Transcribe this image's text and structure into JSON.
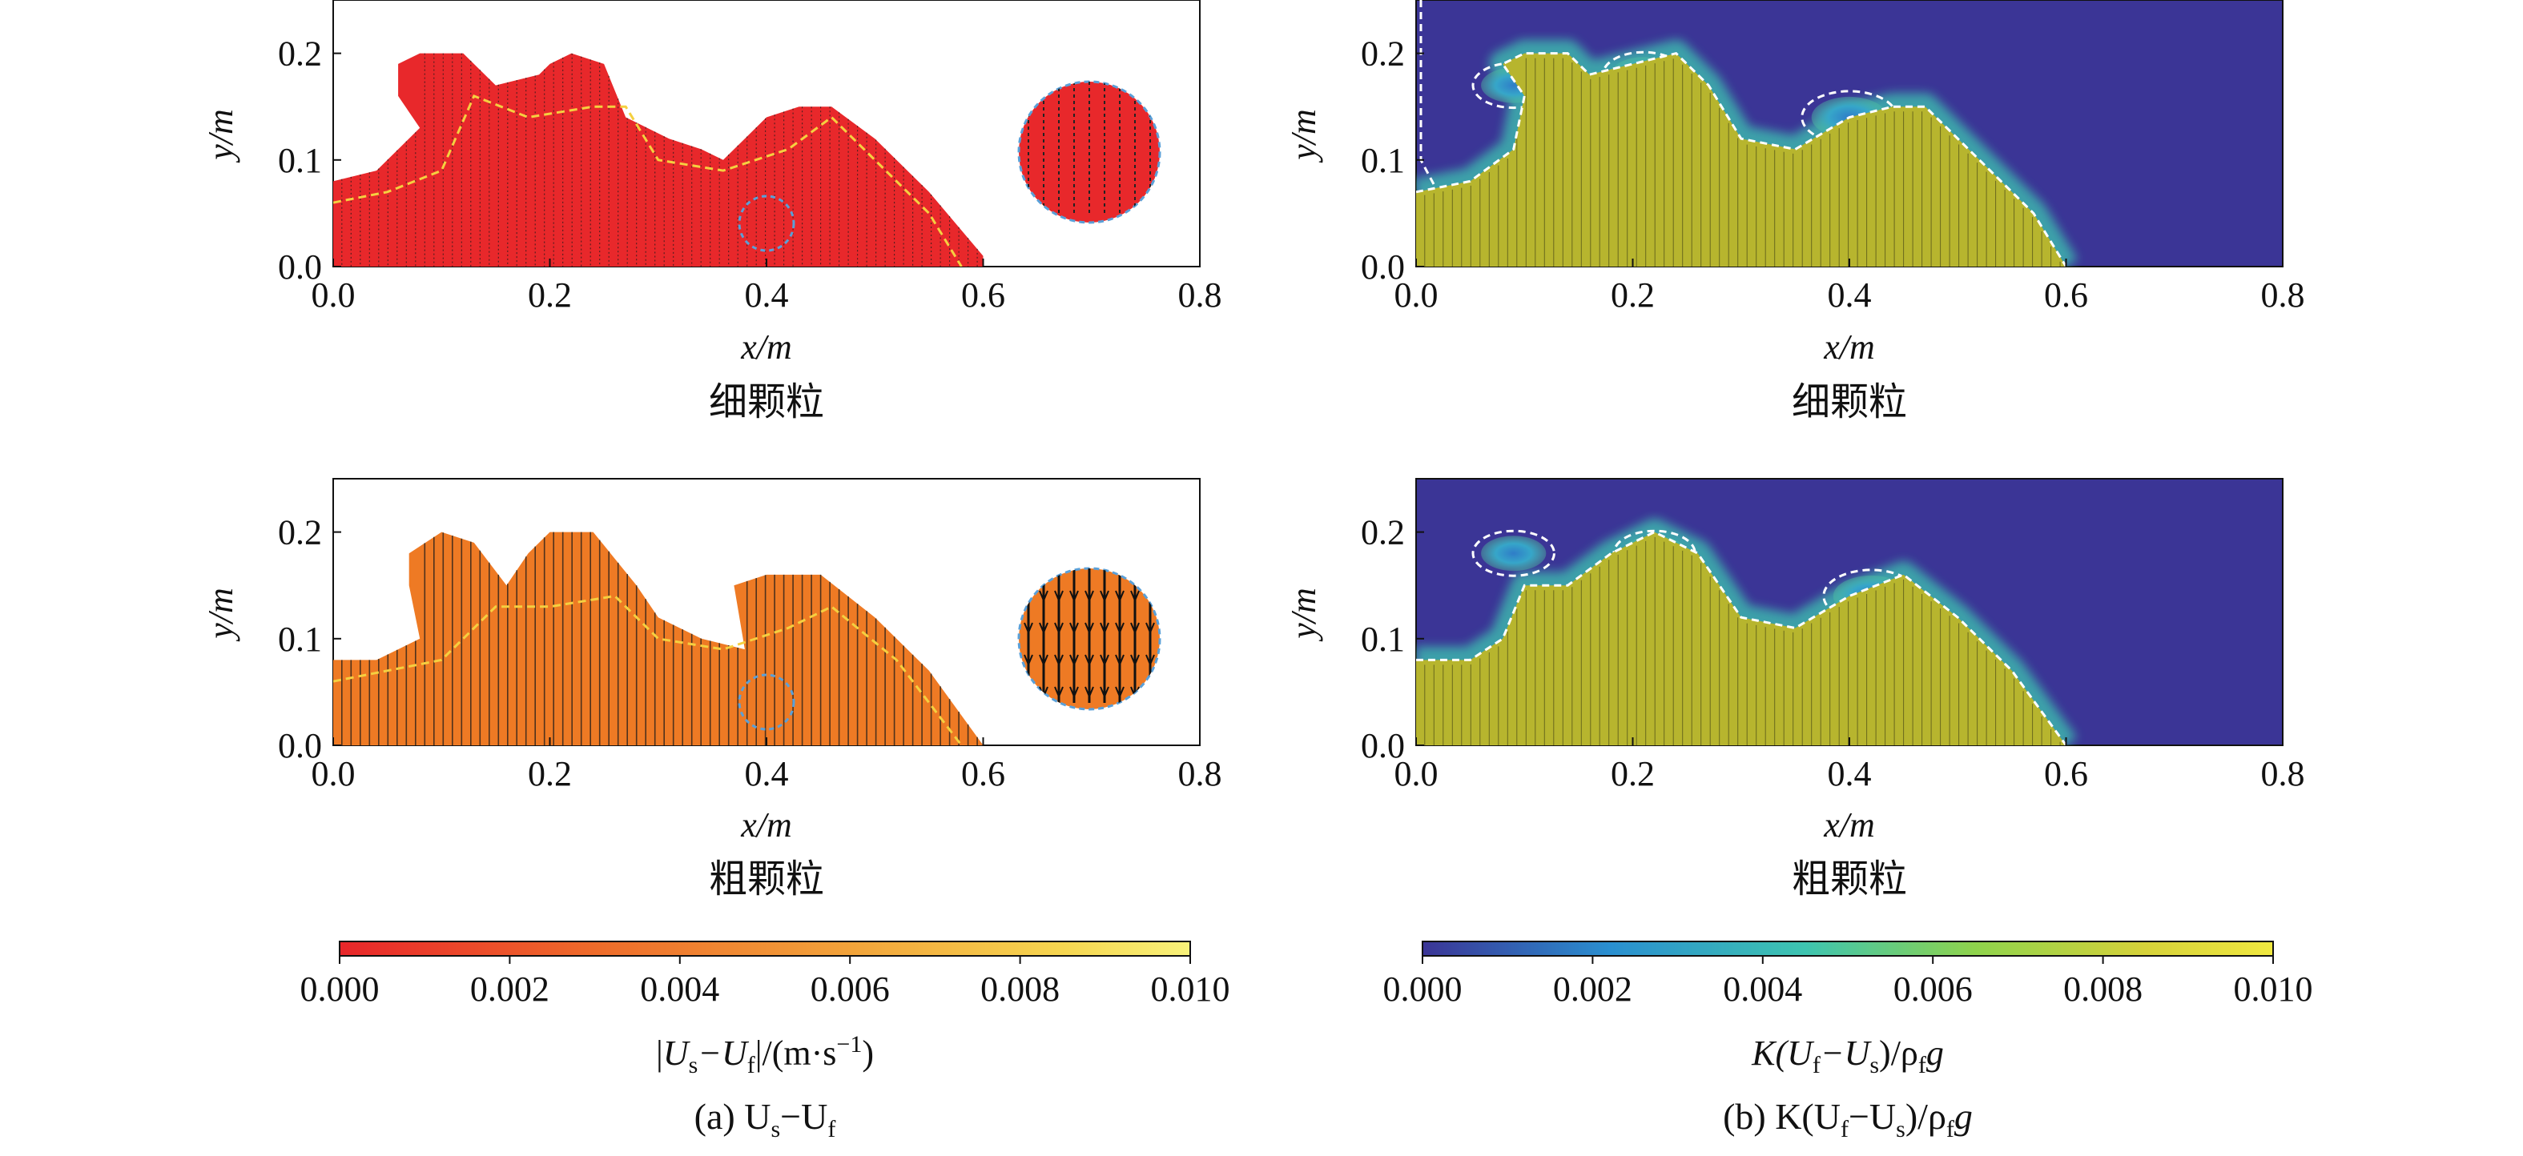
{
  "figure": {
    "panel_a_caption": {
      "label": "(a) U",
      "sub1": "s",
      "mid": "−U",
      "sub2": "f"
    },
    "panel_b_caption": {
      "label": "(b) K(U",
      "sub1": "f",
      "mid": "−U",
      "sub2": "s",
      "tail": ")/ρ",
      "sub3": "f",
      "end": "g"
    }
  },
  "chart_data": [
    {
      "type": "heatmap",
      "panel": "a",
      "subtitle": "细颗粒",
      "xlabel": "x/m",
      "ylabel": "y/m",
      "xlim": [
        0,
        0.8
      ],
      "ylim": [
        0,
        0.25
      ],
      "xticks": [
        "0.0",
        "0.2",
        "0.4",
        "0.6",
        "0.8"
      ],
      "yticks": [
        "0.0",
        "0.1",
        "0.2"
      ],
      "fill_color": "#e8282b",
      "inset_arrow_color": "#222222",
      "surface": [
        [
          0,
          0.08
        ],
        [
          0.04,
          0.09
        ],
        [
          0.08,
          0.13
        ],
        [
          0.06,
          0.16
        ],
        [
          0.06,
          0.19
        ],
        [
          0.08,
          0.2
        ],
        [
          0.12,
          0.2
        ],
        [
          0.15,
          0.17
        ],
        [
          0.19,
          0.18
        ],
        [
          0.2,
          0.19
        ],
        [
          0.22,
          0.2
        ],
        [
          0.25,
          0.19
        ],
        [
          0.27,
          0.14
        ],
        [
          0.31,
          0.12
        ],
        [
          0.34,
          0.11
        ],
        [
          0.36,
          0.1
        ],
        [
          0.38,
          0.12
        ],
        [
          0.4,
          0.14
        ],
        [
          0.43,
          0.15
        ],
        [
          0.46,
          0.15
        ],
        [
          0.5,
          0.12
        ],
        [
          0.55,
          0.07
        ],
        [
          0.6,
          0.01
        ],
        [
          0.6,
          0
        ]
      ],
      "interface": [
        [
          0,
          0.06
        ],
        [
          0.05,
          0.07
        ],
        [
          0.1,
          0.09
        ],
        [
          0.13,
          0.16
        ],
        [
          0.18,
          0.14
        ],
        [
          0.24,
          0.15
        ],
        [
          0.27,
          0.15
        ],
        [
          0.3,
          0.1
        ],
        [
          0.36,
          0.09
        ],
        [
          0.42,
          0.11
        ],
        [
          0.46,
          0.14
        ],
        [
          0.5,
          0.1
        ],
        [
          0.55,
          0.05
        ],
        [
          0.58,
          0
        ]
      ]
    },
    {
      "type": "heatmap",
      "panel": "a",
      "subtitle": "粗颗粒",
      "xlabel": "x/m",
      "ylabel": "y/m",
      "xlim": [
        0,
        0.8
      ],
      "ylim": [
        0,
        0.25
      ],
      "xticks": [
        "0.0",
        "0.2",
        "0.4",
        "0.6",
        "0.8"
      ],
      "yticks": [
        "0.0",
        "0.1",
        "0.2"
      ],
      "fill_color": "#ee7a24",
      "inset_arrow_color": "#111111",
      "surface": [
        [
          0,
          0.08
        ],
        [
          0.04,
          0.08
        ],
        [
          0.08,
          0.1
        ],
        [
          0.07,
          0.15
        ],
        [
          0.07,
          0.18
        ],
        [
          0.1,
          0.2
        ],
        [
          0.13,
          0.19
        ],
        [
          0.16,
          0.15
        ],
        [
          0.18,
          0.18
        ],
        [
          0.2,
          0.2
        ],
        [
          0.24,
          0.2
        ],
        [
          0.28,
          0.15
        ],
        [
          0.3,
          0.12
        ],
        [
          0.34,
          0.1
        ],
        [
          0.38,
          0.09
        ],
        [
          0.37,
          0.15
        ],
        [
          0.4,
          0.16
        ],
        [
          0.45,
          0.16
        ],
        [
          0.5,
          0.12
        ],
        [
          0.55,
          0.07
        ],
        [
          0.6,
          0
        ]
      ],
      "interface": [
        [
          0,
          0.06
        ],
        [
          0.05,
          0.07
        ],
        [
          0.1,
          0.08
        ],
        [
          0.15,
          0.13
        ],
        [
          0.2,
          0.13
        ],
        [
          0.26,
          0.14
        ],
        [
          0.3,
          0.1
        ],
        [
          0.36,
          0.09
        ],
        [
          0.42,
          0.11
        ],
        [
          0.46,
          0.13
        ],
        [
          0.52,
          0.08
        ],
        [
          0.58,
          0
        ]
      ]
    },
    {
      "type": "heatmap",
      "panel": "b",
      "subtitle": "细颗粒",
      "xlabel": "x/m",
      "ylabel": "y/m",
      "xlim": [
        0,
        0.8
      ],
      "ylim": [
        0,
        0.25
      ],
      "xticks": [
        "0.0",
        "0.2",
        "0.4",
        "0.6",
        "0.8"
      ],
      "yticks": [
        "0.0",
        "0.1",
        "0.2"
      ],
      "background_color": "#3b3596",
      "fill_color": "#b7b52e",
      "surface": [
        [
          0,
          0.07
        ],
        [
          0.05,
          0.08
        ],
        [
          0.09,
          0.11
        ],
        [
          0.1,
          0.16
        ],
        [
          0.08,
          0.19
        ],
        [
          0.1,
          0.2
        ],
        [
          0.14,
          0.2
        ],
        [
          0.16,
          0.18
        ],
        [
          0.2,
          0.19
        ],
        [
          0.24,
          0.2
        ],
        [
          0.27,
          0.17
        ],
        [
          0.3,
          0.12
        ],
        [
          0.35,
          0.11
        ],
        [
          0.4,
          0.14
        ],
        [
          0.44,
          0.15
        ],
        [
          0.47,
          0.15
        ],
        [
          0.52,
          0.1
        ],
        [
          0.57,
          0.05
        ],
        [
          0.6,
          0
        ]
      ],
      "vortices": [
        [
          0.09,
          0.17,
          0.03
        ],
        [
          0.21,
          0.18,
          0.03
        ],
        [
          0.4,
          0.14,
          0.035
        ]
      ]
    },
    {
      "type": "heatmap",
      "panel": "b",
      "subtitle": "粗颗粒",
      "xlabel": "x/m",
      "ylabel": "y/m",
      "xlim": [
        0,
        0.8
      ],
      "ylim": [
        0,
        0.25
      ],
      "xticks": [
        "0.0",
        "0.2",
        "0.4",
        "0.6",
        "0.8"
      ],
      "yticks": [
        "0.0",
        "0.1",
        "0.2"
      ],
      "background_color": "#3b3596",
      "fill_color": "#b7b52e",
      "surface": [
        [
          0,
          0.08
        ],
        [
          0.05,
          0.08
        ],
        [
          0.08,
          0.1
        ],
        [
          0.1,
          0.15
        ],
        [
          0.14,
          0.15
        ],
        [
          0.18,
          0.18
        ],
        [
          0.22,
          0.2
        ],
        [
          0.26,
          0.18
        ],
        [
          0.3,
          0.12
        ],
        [
          0.35,
          0.11
        ],
        [
          0.4,
          0.14
        ],
        [
          0.45,
          0.16
        ],
        [
          0.5,
          0.12
        ],
        [
          0.55,
          0.07
        ],
        [
          0.6,
          0
        ]
      ],
      "vortices": [
        [
          0.09,
          0.18,
          0.03
        ],
        [
          0.22,
          0.18,
          0.03
        ],
        [
          0.42,
          0.14,
          0.035
        ]
      ]
    }
  ],
  "colorbars": [
    {
      "panel": "a",
      "ticks": [
        "0.000",
        "0.002",
        "0.004",
        "0.006",
        "0.008",
        "0.010"
      ],
      "range": [
        0,
        0.01
      ],
      "colors": [
        "#e8262a",
        "#ee6b2a",
        "#f2a33a",
        "#f6d650",
        "#f8f27a"
      ],
      "label": {
        "bar": "|",
        "U1": "U",
        "s1": "s",
        "minus": "−U",
        "s2": "f",
        "tail": "|/(m·s",
        "sup": "−1",
        "end": ")"
      }
    },
    {
      "panel": "b",
      "ticks": [
        "0.000",
        "0.002",
        "0.004",
        "0.006",
        "0.008",
        "0.010"
      ],
      "range": [
        0,
        0.01
      ],
      "colors": [
        "#3b3596",
        "#2a8fd0",
        "#3ec4b0",
        "#8fd34c",
        "#d6d23a",
        "#f0e840"
      ],
      "label": {
        "K": "K(U",
        "s1": "f",
        "minus": "−U",
        "s2": "s",
        "tail": ")/ρ",
        "s3": "f",
        "end": "g"
      }
    }
  ]
}
